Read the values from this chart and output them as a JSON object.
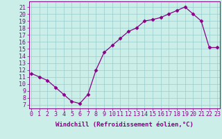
{
  "x": [
    0,
    1,
    2,
    3,
    4,
    5,
    6,
    7,
    8,
    9,
    10,
    11,
    12,
    13,
    14,
    15,
    16,
    17,
    18,
    19,
    20,
    21,
    22,
    23
  ],
  "y": [
    11.5,
    11.0,
    10.5,
    9.5,
    8.5,
    7.5,
    7.2,
    8.5,
    12.0,
    14.5,
    15.5,
    16.5,
    17.5,
    18.0,
    19.0,
    19.2,
    19.5,
    20.0,
    20.5,
    21.0,
    20.0,
    19.0,
    15.2,
    15.2
  ],
  "line_color": "#880088",
  "marker": "D",
  "marker_size": 2.5,
  "bg_color": "#cceee8",
  "grid_color": "#99cccc",
  "xlabel": "Windchill (Refroidissement éolien,°C)",
  "xlabel_color": "#880088",
  "ylabel_ticks": [
    7,
    8,
    9,
    10,
    11,
    12,
    13,
    14,
    15,
    16,
    17,
    18,
    19,
    20,
    21
  ],
  "xticks": [
    0,
    1,
    2,
    3,
    4,
    5,
    6,
    7,
    8,
    9,
    10,
    11,
    12,
    13,
    14,
    15,
    16,
    17,
    18,
    19,
    20,
    21,
    22,
    23
  ],
  "xlim": [
    -0.3,
    23.3
  ],
  "ylim": [
    6.5,
    21.8
  ],
  "tick_color": "#880088",
  "font_size": 6,
  "xlabel_fontsize": 6.5
}
